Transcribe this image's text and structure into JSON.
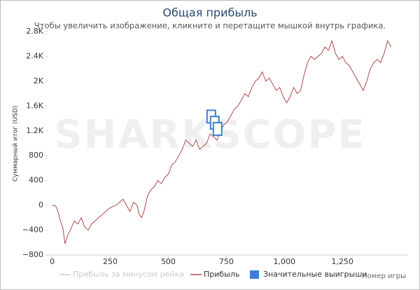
{
  "chart_data": {
    "type": "line",
    "title": "Общая прибыль",
    "subtitle": "Чтобы увеличить изображение, кликните и перетащите мышкой внутрь графика.",
    "watermark": "SHARKSCOPE",
    "xlabel": "Номер игры",
    "ylabel": "Суммарный итог (USD)",
    "xlim": [
      -20,
      1530
    ],
    "ylim": [
      -800,
      2800
    ],
    "xticks": [
      0,
      250,
      500,
      750,
      {
        "value": 1000,
        "label": "1,000"
      },
      {
        "value": 1250,
        "label": "1,250"
      }
    ],
    "yticks": [
      {
        "value": -800,
        "label": "−800"
      },
      {
        "value": -400,
        "label": "−400"
      },
      0,
      400,
      800,
      {
        "value": 1200,
        "label": "1.2K"
      },
      {
        "value": 1600,
        "label": "1.6K"
      },
      {
        "value": 2000,
        "label": "2K"
      },
      {
        "value": 2400,
        "label": "2.4K"
      },
      {
        "value": 2800,
        "label": "2.8K"
      }
    ],
    "legend_position": "bottom",
    "series": [
      {
        "name": "Прибыль за минусом рейка",
        "color": "#cccccc",
        "hidden": true
      },
      {
        "name": "Прибыль",
        "color": "#b04a4a",
        "x": [
          0,
          15,
          25,
          35,
          45,
          55,
          65,
          80,
          95,
          110,
          125,
          140,
          155,
          170,
          185,
          200,
          215,
          230,
          245,
          260,
          275,
          290,
          305,
          320,
          335,
          350,
          365,
          375,
          385,
          395,
          410,
          425,
          440,
          455,
          470,
          485,
          500,
          515,
          530,
          545,
          560,
          575,
          590,
          605,
          620,
          635,
          650,
          665,
          680,
          695,
          710,
          725,
          740,
          755,
          770,
          785,
          800,
          815,
          830,
          845,
          860,
          875,
          890,
          905,
          920,
          935,
          950,
          965,
          980,
          995,
          1010,
          1025,
          1040,
          1055,
          1070,
          1085,
          1100,
          1115,
          1130,
          1145,
          1160,
          1175,
          1190,
          1205,
          1220,
          1235,
          1250,
          1265,
          1280,
          1295,
          1310,
          1325,
          1340,
          1355,
          1370,
          1385,
          1400,
          1415,
          1430,
          1445,
          1460
        ],
        "values": [
          0,
          -10,
          -100,
          -250,
          -350,
          -620,
          -500,
          -380,
          -250,
          -300,
          -200,
          -350,
          -400,
          -300,
          -250,
          -200,
          -150,
          -100,
          -50,
          -20,
          0,
          50,
          100,
          0,
          -100,
          50,
          0,
          -150,
          -200,
          -100,
          150,
          250,
          300,
          400,
          350,
          450,
          500,
          650,
          700,
          800,
          900,
          1050,
          1000,
          950,
          1050,
          900,
          950,
          1000,
          1150,
          1100,
          1050,
          1200,
          1300,
          1350,
          1450,
          1550,
          1600,
          1700,
          1800,
          1750,
          1900,
          2000,
          2050,
          2150,
          2000,
          2050,
          1950,
          1850,
          1900,
          1750,
          1650,
          1750,
          1900,
          1800,
          1850,
          2100,
          2300,
          2400,
          2350,
          2400,
          2450,
          2550,
          2500,
          2650,
          2450,
          2350,
          2400,
          2300,
          2250,
          2150,
          2050,
          1950,
          1850,
          2000,
          2200,
          2300,
          2350,
          2300,
          2450,
          2650,
          2550
        ]
      },
      {
        "name": "Значительные выигрыши",
        "color": "#3a7fd5",
        "marker": true,
        "x": [
          685,
          700,
          712
        ],
        "values": [
          1430,
          1330,
          1230
        ]
      }
    ]
  }
}
